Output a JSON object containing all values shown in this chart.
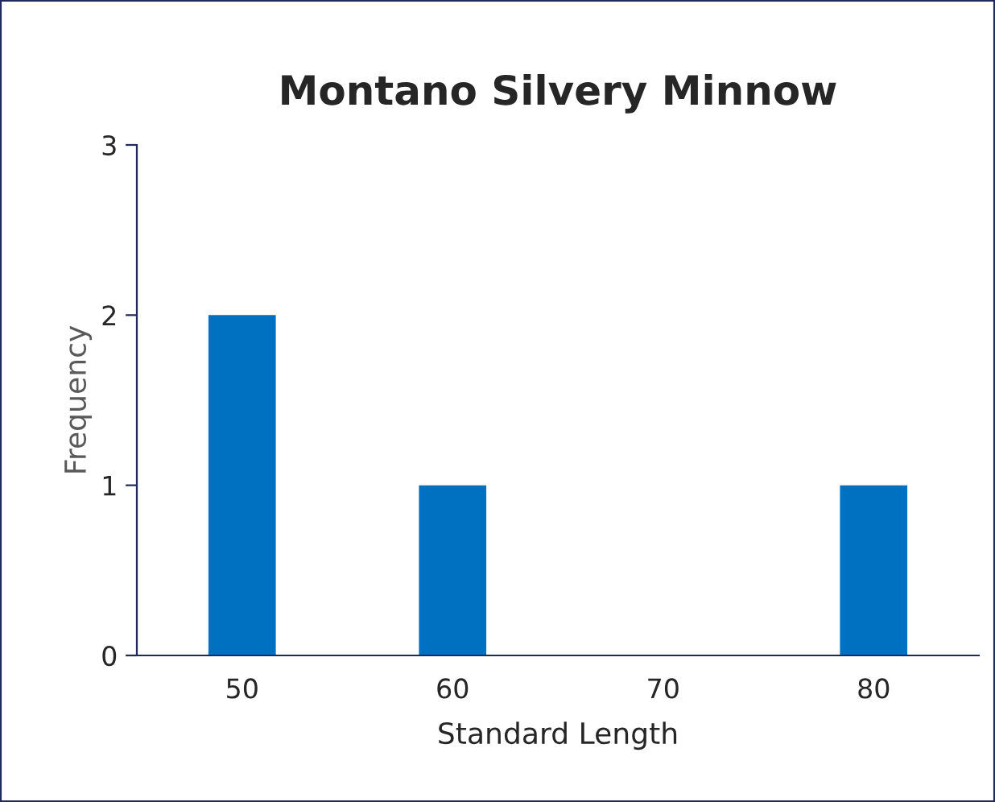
{
  "chart_data": {
    "type": "bar",
    "title": "Montano Silvery Minnow",
    "xlabel": "Standard Length",
    "ylabel": "Frequency",
    "categories": [
      "50",
      "60",
      "70",
      "80"
    ],
    "values": [
      2,
      1,
      0,
      1
    ],
    "color": "#0070c0",
    "ylim": [
      0,
      3
    ],
    "yticks": [
      0,
      1,
      2,
      3
    ],
    "grid": false,
    "legend": false
  }
}
